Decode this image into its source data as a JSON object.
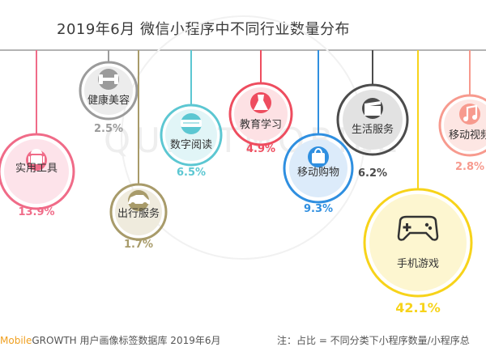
{
  "title": "2019年6月 微信小程序中不同行业数量分布",
  "footer": {
    "source_brand": "Mobile",
    "source_rest": "GROWTH 用户画像标签数据库  2019年6月",
    "note": "注：占比 = 不同分类下小程序数量/小程序总"
  },
  "watermark": "QUESTMOBILE",
  "colors": {
    "pink": "#f06b88",
    "gray": "#9b9b9b",
    "olive": "#a89b6a",
    "teal": "#5cc7d2",
    "red": "#ee4d5f",
    "blue": "#2f8fe0",
    "dark": "#4c4c4c",
    "yellow": "#f7d31a",
    "salmon": "#f79a8e"
  },
  "chart_data": {
    "type": "bubble",
    "title": "2019年6月 微信小程序中不同行业数量分布",
    "unit": "%",
    "categories": [
      "实用工具",
      "健康美容",
      "出行服务",
      "数字阅读",
      "教育学习",
      "移动购物",
      "生活服务",
      "手机游戏",
      "移动视频"
    ],
    "values": [
      13.9,
      2.5,
      1.7,
      6.5,
      4.9,
      9.3,
      6.2,
      42.1,
      2.8
    ],
    "labels": [
      "13.9%",
      "2.5%",
      "1.7%",
      "6.5%",
      "4.9%",
      "9.3%",
      "6.2%",
      "42.1%",
      "2.8%"
    ],
    "icons": [
      "android-icon",
      "dumbbell-icon",
      "car-icon",
      "book-icon",
      "dress-icon",
      "bag-icon",
      "clapper-icon",
      "gamepad-icon",
      "music-icon"
    ],
    "colors": [
      "#f06b88",
      "#9b9b9b",
      "#a89b6a",
      "#5cc7d2",
      "#ee4d5f",
      "#2f8fe0",
      "#4c4c4c",
      "#f7d31a",
      "#f79a8e"
    ]
  }
}
